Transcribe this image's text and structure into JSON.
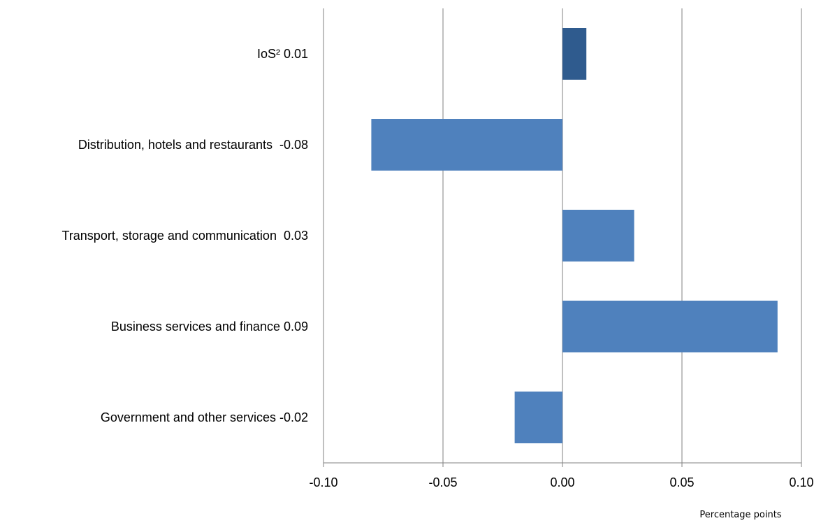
{
  "chart_data": {
    "type": "bar",
    "orientation": "horizontal",
    "categories": [
      "IoS² 0.01",
      "Distribution, hotels and restaurants  -0.08",
      "Transport, storage and communication  0.03",
      "Business services and finance 0.09",
      "Government and other services -0.02"
    ],
    "values": [
      0.01,
      -0.08,
      0.03,
      0.09,
      -0.02
    ],
    "bar_colors": [
      "#2f5b8e",
      "#4f81bd",
      "#4f81bd",
      "#4f81bd",
      "#4f81bd"
    ],
    "xlim": [
      -0.1,
      0.1
    ],
    "x_ticks": [
      -0.1,
      -0.05,
      0.0,
      0.05,
      0.1
    ],
    "x_tick_labels": [
      "-0.10",
      "-0.05",
      "0.00",
      "0.05",
      "0.10"
    ],
    "xlabel": "Percentage points",
    "grid": "vertical",
    "legend": "none",
    "gridline_color": "#808080"
  }
}
